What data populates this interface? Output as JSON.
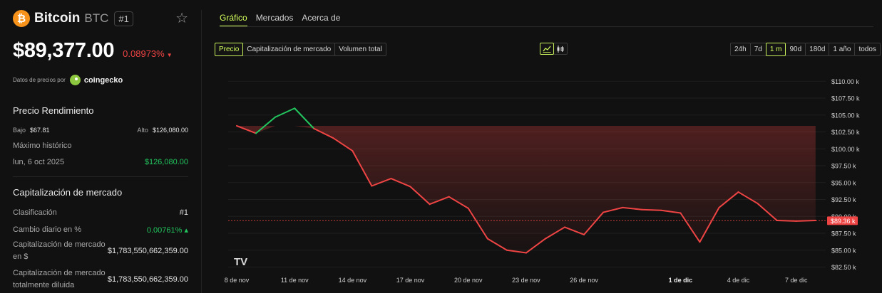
{
  "coin": {
    "name": "Bitcoin",
    "symbol": "BTC",
    "rank_badge": "#1",
    "logo_glyph": "₿",
    "price": "$89,377.00",
    "change": "0.08973%"
  },
  "source": {
    "label": "Datos de precios por",
    "provider": "coingecko"
  },
  "performance": {
    "title": "Precio Rendimiento",
    "low_label": "Bajo",
    "low_value": "$67.81",
    "high_label": "Alto",
    "high_value": "$126,080.00",
    "ath_label": "Máximo histórico",
    "ath_date": "lun, 6 oct 2025",
    "ath_value": "$126,080.00"
  },
  "market": {
    "title": "Capitalización de mercado",
    "rows": [
      {
        "label": "Clasificación",
        "value": "#1"
      },
      {
        "label": "Cambio diario en %",
        "value": "0.00761% ▴"
      },
      {
        "label": "Capitalización de mercado en $",
        "value": "$1,783,550,662,359.00"
      },
      {
        "label": "Capitalización de mercado totalmente diluida",
        "value": "$1,783,550,662,359.00"
      }
    ]
  },
  "tabs": [
    "Gráfico",
    "Mercados",
    "Acerca de"
  ],
  "metric_buttons": [
    "Precio",
    "Capitalización de mercado",
    "Volumen total"
  ],
  "range_buttons": [
    "24h",
    "7d",
    "1 m",
    "90d",
    "180d",
    "1 año",
    "todos"
  ],
  "colors": {
    "up": "#22c55e",
    "down": "#ef4444",
    "accent": "#d4ff5c",
    "btc": "#f7931a"
  },
  "chart_data": {
    "type": "line",
    "x": [
      "8 nov",
      "9 nov",
      "10 nov",
      "11 nov",
      "12 nov",
      "13 nov",
      "14 nov",
      "15 nov",
      "16 nov",
      "17 nov",
      "18 nov",
      "19 nov",
      "20 nov",
      "21 nov",
      "22 nov",
      "23 nov",
      "24 nov",
      "25 nov",
      "26 nov",
      "27 nov",
      "28 nov",
      "29 nov",
      "30 nov",
      "1 dic",
      "2 dic",
      "3 dic",
      "4 dic",
      "5 dic",
      "6 dic",
      "7 dic",
      "8 dic"
    ],
    "values": [
      103400,
      102300,
      104700,
      106000,
      103000,
      101600,
      99700,
      94500,
      95600,
      94400,
      91800,
      92900,
      91200,
      86700,
      85000,
      84600,
      86700,
      88400,
      87300,
      90600,
      91300,
      91000,
      90900,
      90500,
      86200,
      91300,
      93600,
      91900,
      89400,
      89300,
      89400
    ],
    "x_tick_labels": [
      "8 de nov",
      "11 de nov",
      "14 de nov",
      "17 de nov",
      "20 de nov",
      "23 de nov",
      "26 de nov",
      "1 de dic",
      "4 de dic",
      "7 de dic"
    ],
    "y_ticks": [
      82500,
      85000,
      87500,
      90000,
      92500,
      95000,
      97500,
      100000,
      102500,
      105000,
      107500,
      110000
    ],
    "y_tick_labels": [
      "$82.50 k",
      "$85.00 k",
      "$87.50 k",
      "$90.00 k",
      "$92.50 k",
      "$95.00 k",
      "$97.50 k",
      "$100.00 k",
      "$102.50 k",
      "$105.00 k",
      "$107.50 k",
      "$110.00 k"
    ],
    "ylim": [
      81500,
      111500
    ],
    "current_price": 89360,
    "current_price_label": "$89.36 k",
    "grid": true,
    "watermark": "TV",
    "segment_colors": "green above starting price, red below"
  }
}
